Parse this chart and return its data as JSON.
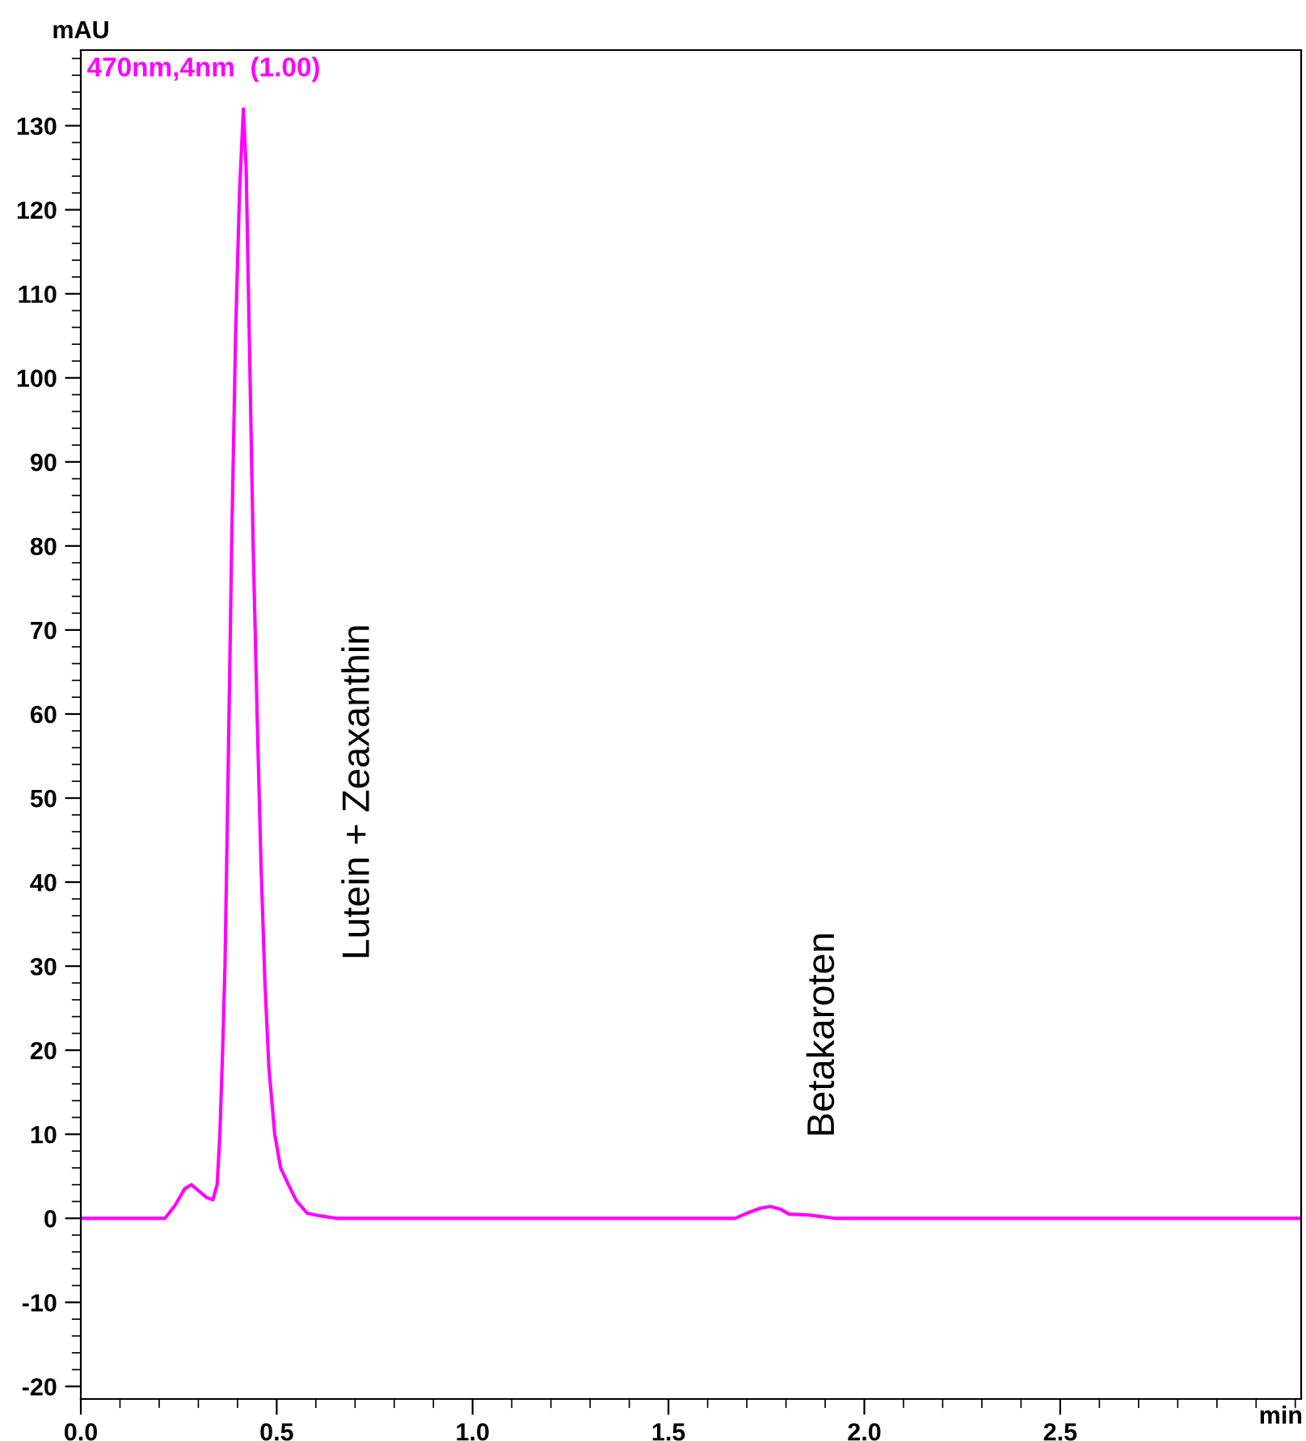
{
  "chart_data": {
    "type": "line",
    "xlabel": "min",
    "ylabel": "mAU",
    "x": [
      0,
      0.215,
      0.24,
      0.265,
      0.282,
      0.3,
      0.32,
      0.337,
      0.348,
      0.355,
      0.362,
      0.368,
      0.375,
      0.385,
      0.395,
      0.405,
      0.415,
      0.422,
      0.43,
      0.44,
      0.45,
      0.46,
      0.47,
      0.48,
      0.495,
      0.51,
      0.53,
      0.55,
      0.578,
      0.61,
      0.652,
      1.67,
      1.7,
      1.735,
      1.76,
      1.785,
      1.808,
      1.856,
      1.925,
      3.115
    ],
    "series": [
      {
        "color": "#ff00ff",
        "values": [
          0,
          0,
          1.5,
          3.5,
          4.0,
          3.3,
          2.5,
          2.2,
          4,
          10,
          20,
          30,
          50,
          80,
          105,
          122,
          132,
          125,
          105,
          80,
          60,
          42,
          28,
          18,
          10,
          6,
          4,
          2.1,
          0.6,
          0.3,
          0,
          0,
          0.6,
          1.2,
          1.4,
          1.1,
          0.5,
          0.4,
          0,
          0
        ]
      }
    ],
    "xlim": [
      0,
      3.115
    ],
    "ylim": [
      -21.5,
      139
    ],
    "xticks": [
      {
        "value": 0,
        "label": "0.0"
      },
      {
        "value": 0.5,
        "label": "0.5"
      },
      {
        "value": 1,
        "label": "1.0"
      },
      {
        "value": 1.5,
        "label": "1.5"
      },
      {
        "value": 2,
        "label": "2.0"
      },
      {
        "value": 2.5,
        "label": "2.5"
      }
    ],
    "yticks": [
      -20,
      -10,
      0,
      10,
      20,
      30,
      40,
      50,
      60,
      70,
      80,
      90,
      100,
      110,
      120,
      130
    ],
    "grid": false,
    "legend": false,
    "marker": "none",
    "line_style": "solid",
    "annotations": [
      "470nm,4nm  (1.00)",
      "Lutein + Zeaxanthin",
      "Betakaroten"
    ]
  }
}
